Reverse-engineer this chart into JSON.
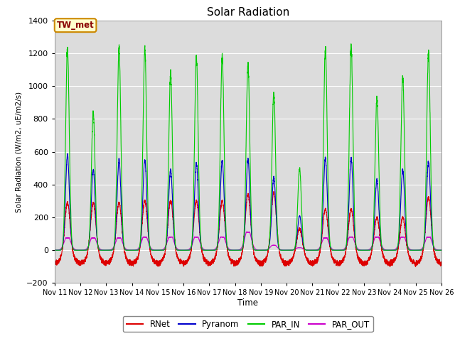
{
  "title": "Solar Radiation",
  "ylabel": "Solar Radiation (W/m2, uE/m2/s)",
  "xlabel": "Time",
  "xlim_days": [
    11,
    26
  ],
  "ylim": [
    -200,
    1400
  ],
  "yticks": [
    -200,
    0,
    200,
    400,
    600,
    800,
    1000,
    1200,
    1400
  ],
  "xtick_labels": [
    "Nov 11",
    "Nov 12",
    "Nov 13",
    "Nov 14",
    "Nov 15",
    "Nov 16",
    "Nov 17",
    "Nov 18",
    "Nov 19",
    "Nov 20",
    "Nov 21",
    "Nov 22",
    "Nov 23",
    "Nov 24",
    "Nov 25",
    "Nov 26"
  ],
  "bg_color": "#dcdcdc",
  "annotation_text": "TW_met",
  "annotation_bg": "#ffffcc",
  "annotation_border": "#cc8800",
  "annotation_text_color": "#880000",
  "colors": {
    "RNet": "#dd0000",
    "Pyranom": "#0000cc",
    "PAR_IN": "#00cc00",
    "PAR_OUT": "#cc00cc"
  },
  "legend_labels": [
    "RNet",
    "Pyranom",
    "PAR_IN",
    "PAR_OUT"
  ],
  "par_in_peaks": [
    1230,
    840,
    1230,
    1230,
    1080,
    1170,
    1180,
    1130,
    960,
    500,
    1230,
    1240,
    930,
    1060,
    1200,
    1180
  ],
  "pyranom_peaks": [
    580,
    490,
    550,
    550,
    490,
    530,
    545,
    555,
    445,
    210,
    560,
    560,
    430,
    490,
    540,
    550
  ],
  "rnet_peaks": [
    290,
    290,
    290,
    300,
    300,
    300,
    300,
    340,
    350,
    130,
    250,
    250,
    200,
    200,
    320,
    330
  ],
  "par_out_peaks": [
    75,
    75,
    75,
    80,
    80,
    80,
    80,
    110,
    30,
    15,
    75,
    80,
    80,
    80,
    80,
    100
  ]
}
